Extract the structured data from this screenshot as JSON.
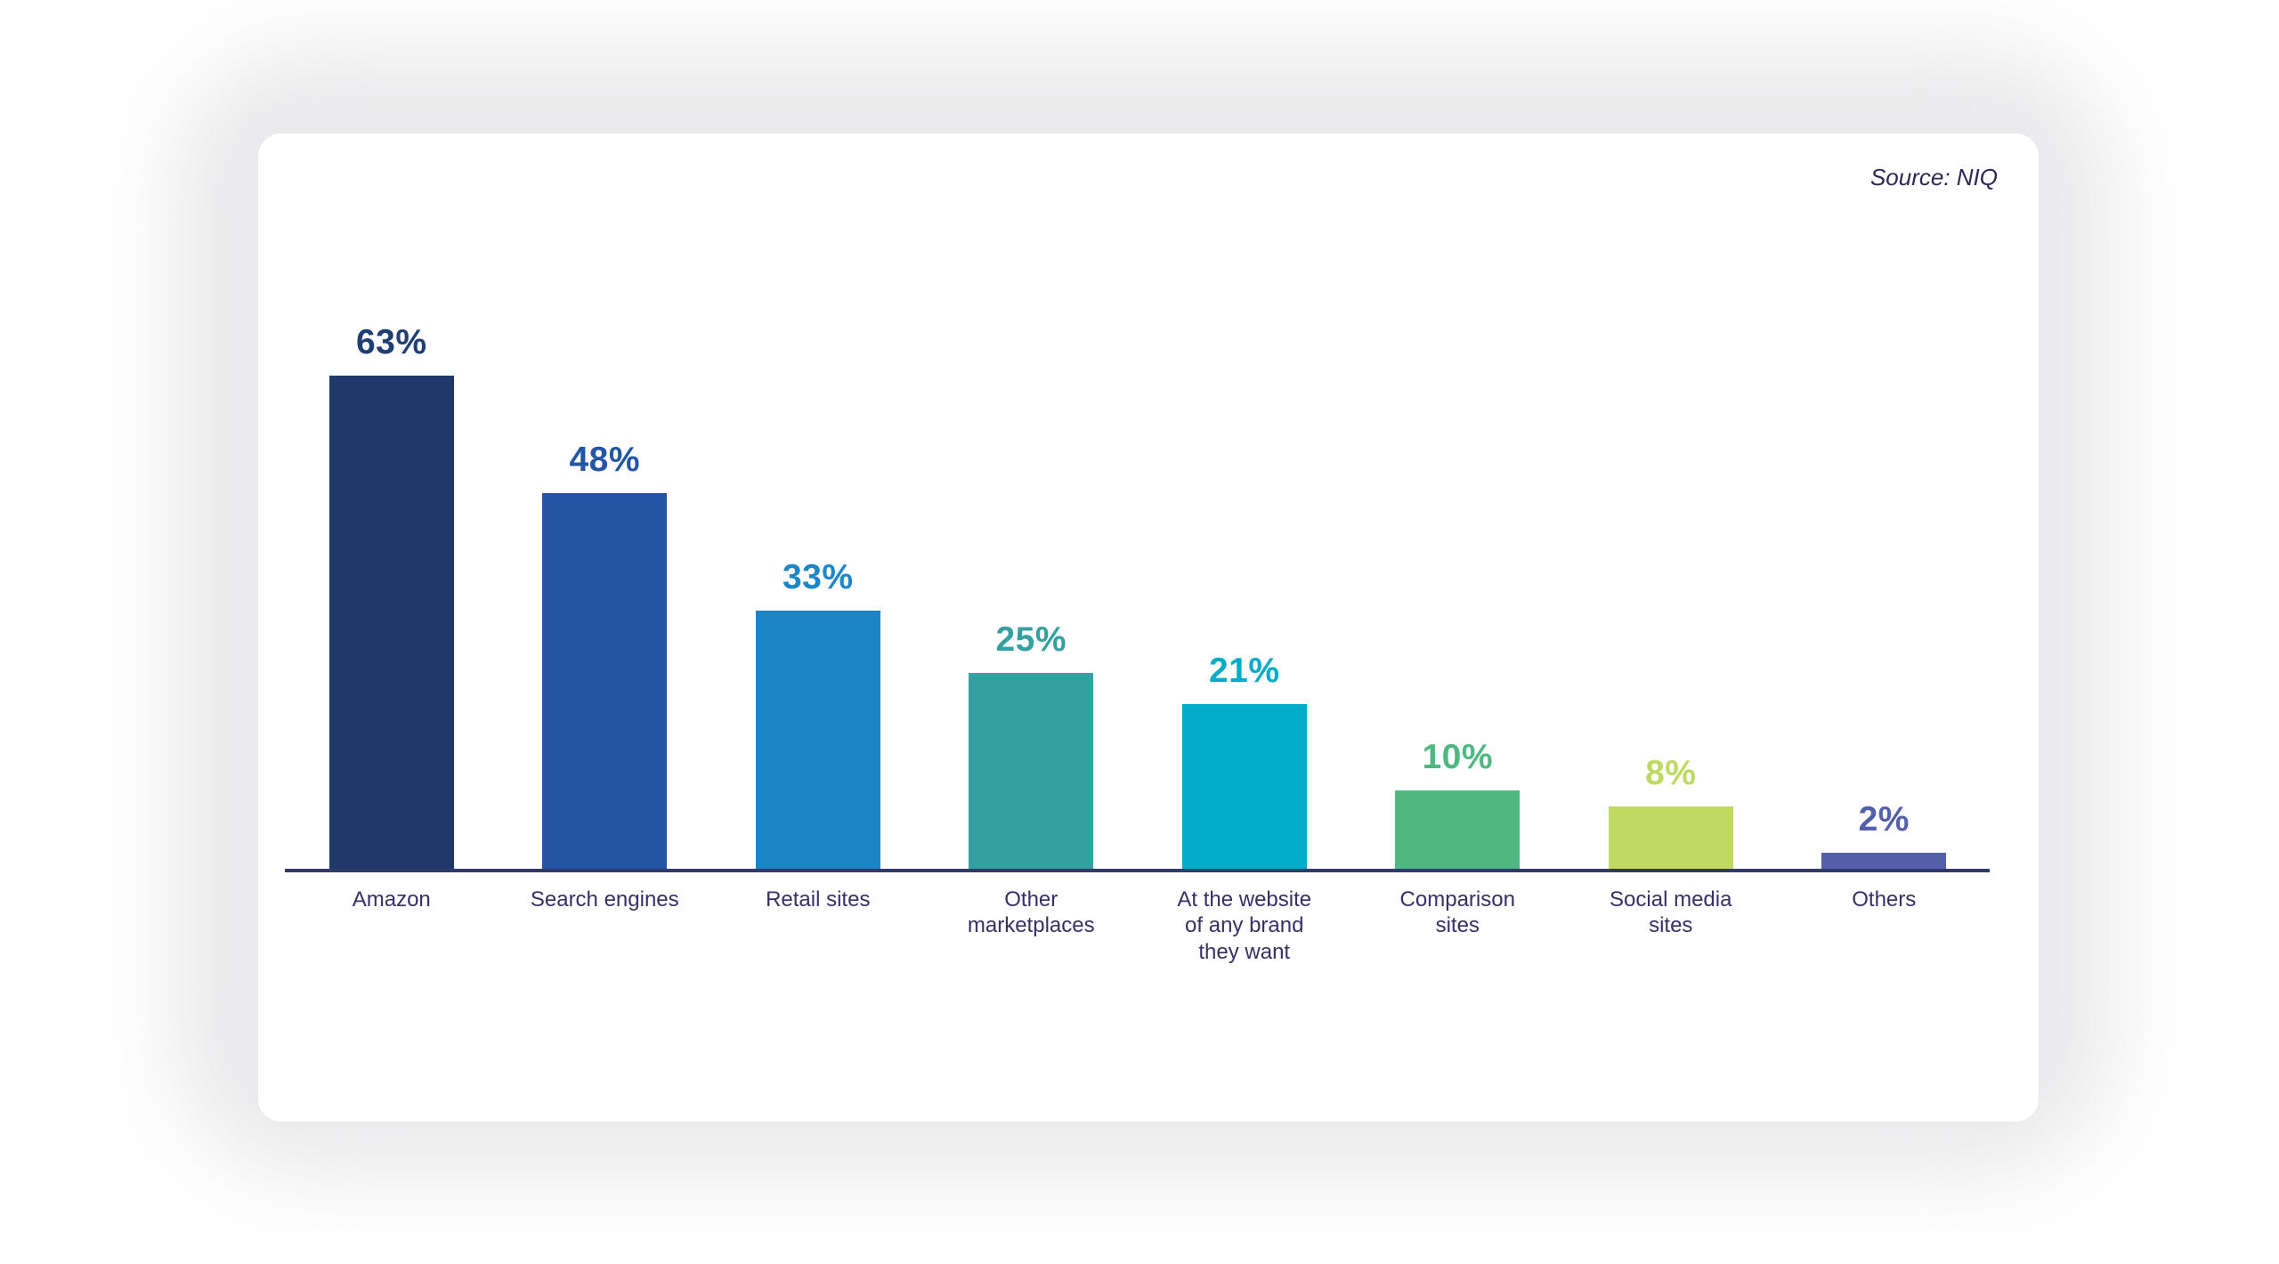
{
  "source": {
    "label": "Source: NIQ"
  },
  "chart_data": {
    "type": "bar",
    "title": "",
    "xlabel": "",
    "ylabel": "",
    "categories": [
      "Amazon",
      "Search engines",
      "Retail sites",
      "Other\nmarketplaces",
      "At the website\nof any brand\nthey want",
      "Comparison\nsites",
      "Social media\nsites",
      "Others"
    ],
    "values": [
      63,
      48,
      33,
      25,
      21,
      10,
      8,
      2
    ],
    "value_labels": [
      "63%",
      "48%",
      "33%",
      "25%",
      "21%",
      "10%",
      "8%",
      "2%"
    ],
    "bar_colors": [
      "#21386B",
      "#2455A4",
      "#1B84C4",
      "#35A0A0",
      "#00ACC7",
      "#4FB780",
      "#BFD963",
      "#5560AB"
    ],
    "value_label_colors": [
      "#1E3E74",
      "#2456A6",
      "#1C86C6",
      "#35A0A0",
      "#00ACC7",
      "#4FB780",
      "#BFD963",
      "#5560AB"
    ],
    "category_label_color": "#363064",
    "axis_color": "#2E3A6E",
    "ylim": [
      0,
      70
    ],
    "grid": false,
    "legend": "none",
    "annotation_source": "Source: NIQ"
  }
}
